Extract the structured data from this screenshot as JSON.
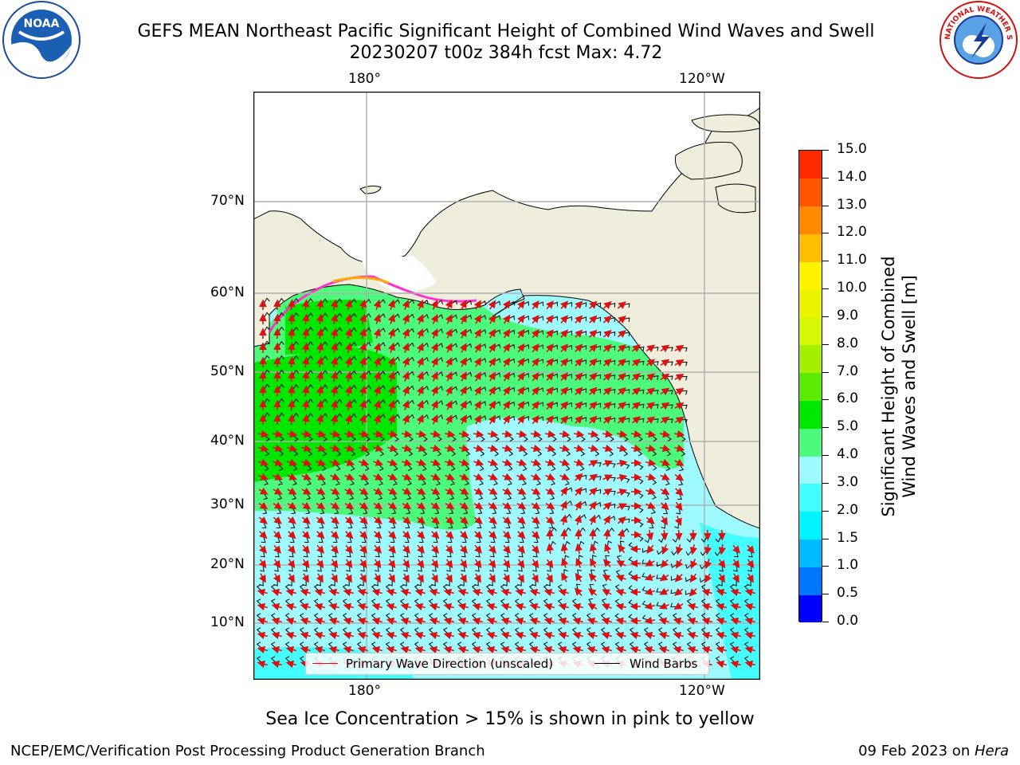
{
  "title_line1": "GEFS MEAN Northeast Pacific Significant Height of Combined Wind Waves and Swell",
  "title_line2": "20230207 t00z 384h fcst   Max: 4.72",
  "lon_labels": [
    "180°",
    "120°W"
  ],
  "lat_labels": [
    "70°N",
    "60°N",
    "50°N",
    "40°N",
    "30°N",
    "20°N",
    "10°N"
  ],
  "colorbar": {
    "title_line1": "Significant Height of Combined",
    "title_line2": "Wind Waves and Swell [m]",
    "ticks": [
      "0.0",
      "0.5",
      "1.0",
      "1.5",
      "2.0",
      "3.0",
      "4.0",
      "5.0",
      "6.0",
      "7.0",
      "8.0",
      "9.0",
      "10.0",
      "11.0",
      "12.0",
      "13.0",
      "14.0",
      "15.0"
    ],
    "colors": [
      "#0000ff",
      "#0077ff",
      "#00bbff",
      "#00f5ff",
      "#44ffff",
      "#9efaff",
      "#4cfb7c",
      "#00e800",
      "#5cea00",
      "#a4ee00",
      "#d6f800",
      "#ebf500",
      "#fff400",
      "#ffbf00",
      "#ff8a00",
      "#ff5500",
      "#ff2a00"
    ]
  },
  "legend": {
    "wave_label": "Primary Wave Direction (unscaled)",
    "barb_label": "Wind Barbs",
    "wave_color": "#dd1111",
    "barb_color": "#000000"
  },
  "colors": {
    "land": "#efeddc",
    "grid": "#b0b0b0",
    "ocean_low": "#9efaff",
    "ocean_mid": "#4cfb7c",
    "ocean_high": "#00e800",
    "ocean_edge": "#44ffff"
  },
  "caption": "Sea Ice Concentration > 15% is shown in pink to yellow",
  "footer_left": "NCEP/EMC/Verification Post Processing Product Generation Branch",
  "footer_date": "09 Feb 2023 on ",
  "footer_host": "Hera",
  "logos": {
    "noaa_text": "NOAA",
    "nws_text": "NATIONAL WEATHER SERVICE"
  }
}
